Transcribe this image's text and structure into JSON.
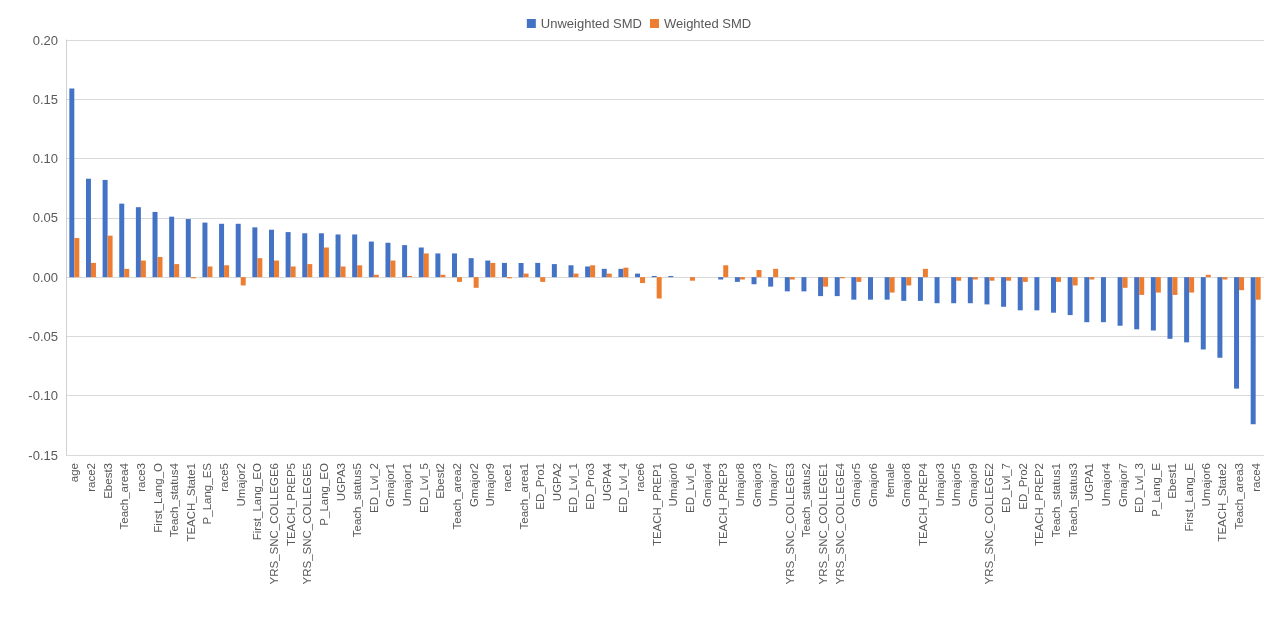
{
  "chart_data": {
    "type": "bar",
    "categories": [
      "age",
      "race2",
      "Ebest3",
      "Teach_area4",
      "race3",
      "First_Lang_O",
      "Teach_status4",
      "TEACH_State1",
      "P_Lang_ES",
      "race5",
      "Umajor2",
      "First_Lang_EO",
      "YRS_SNC_COLLEGE6",
      "TEACH_PREP5",
      "YRS_SNC_COLLEGE5",
      "P_Lang_EO",
      "UGPA3",
      "Teach_status5",
      "ED_Lvl_2",
      "Gmajor1",
      "Umajor1",
      "ED_Lvl_5",
      "Ebest2",
      "Teach_area2",
      "Gmajor2",
      "Umajor9",
      "race1",
      "Teach_area1",
      "ED_Pro1",
      "UGPA2",
      "ED_Lvl_1",
      "ED_Pro3",
      "UGPA4",
      "ED_Lvl_4",
      "race6",
      "TEACH_PREP1",
      "Umajor0",
      "ED_Lvl_6",
      "Gmajor4",
      "TEACH_PREP3",
      "Umajor8",
      "Gmajor3",
      "Umajor7",
      "YRS_SNC_COLLEGE3",
      "Teach_status2",
      "YRS_SNC_COLLEGE1",
      "YRS_SNC_COLLEGE4",
      "Gmajor5",
      "Gmajor6",
      "female",
      "Gmajor8",
      "TEACH_PREP4",
      "Umajor3",
      "Umajor5",
      "Gmajor9",
      "YRS_SNC_COLLEGE2",
      "ED_Lvl_7",
      "ED_Pro2",
      "TEACH_PREP2",
      "Teach_status1",
      "Teach_status3",
      "UGPA1",
      "Umajor4",
      "Gmajor7",
      "ED_Lvl_3",
      "P_Lang_E",
      "Ebest1",
      "First_Lang_E",
      "Umajor6",
      "TEACH_State2",
      "Teach_area3",
      "race4"
    ],
    "series": [
      {
        "name": "Unweighted SMD",
        "color": "#4472c4",
        "values": [
          0.159,
          0.083,
          0.082,
          0.062,
          0.059,
          0.055,
          0.051,
          0.049,
          0.046,
          0.045,
          0.045,
          0.042,
          0.04,
          0.038,
          0.037,
          0.037,
          0.036,
          0.036,
          0.03,
          0.029,
          0.027,
          0.025,
          0.02,
          0.02,
          0.016,
          0.014,
          0.012,
          0.012,
          0.012,
          0.011,
          0.01,
          0.009,
          0.007,
          0.007,
          0.003,
          0.001,
          0.001,
          0.0,
          0.0,
          -0.002,
          -0.004,
          -0.006,
          -0.008,
          -0.012,
          -0.012,
          -0.016,
          -0.016,
          -0.019,
          -0.019,
          -0.019,
          -0.02,
          -0.02,
          -0.022,
          -0.022,
          -0.022,
          -0.023,
          -0.025,
          -0.028,
          -0.028,
          -0.03,
          -0.032,
          -0.038,
          -0.038,
          -0.041,
          -0.044,
          -0.045,
          -0.052,
          -0.055,
          -0.061,
          -0.068,
          -0.094,
          -0.124
        ]
      },
      {
        "name": "Weighted SMD",
        "color": "#ed7d31",
        "values": [
          0.033,
          0.012,
          0.035,
          0.007,
          0.014,
          0.017,
          0.011,
          -0.001,
          0.009,
          0.01,
          -0.007,
          0.016,
          0.014,
          0.009,
          0.011,
          0.025,
          0.009,
          0.01,
          0.002,
          0.014,
          0.001,
          0.02,
          0.002,
          -0.004,
          -0.009,
          0.012,
          -0.001,
          0.003,
          -0.004,
          0.0,
          0.003,
          0.01,
          0.003,
          0.008,
          -0.005,
          -0.018,
          0.0,
          -0.003,
          0.0,
          0.01,
          -0.002,
          0.006,
          0.007,
          -0.002,
          0.0,
          -0.008,
          -0.001,
          -0.004,
          0.0,
          -0.013,
          -0.007,
          0.007,
          0.0,
          -0.003,
          -0.002,
          -0.003,
          -0.003,
          -0.004,
          0.0,
          -0.004,
          -0.007,
          -0.002,
          0.0,
          -0.009,
          -0.015,
          -0.013,
          -0.015,
          -0.013,
          0.002,
          -0.002,
          -0.011,
          -0.019
        ]
      }
    ],
    "ylim": [
      -0.15,
      0.2
    ],
    "yticks": [
      {
        "value": -0.15,
        "label": "-0.15"
      },
      {
        "value": -0.1,
        "label": "-0.10"
      },
      {
        "value": -0.05,
        "label": "-0.05"
      },
      {
        "value": 0,
        "label": "0.00"
      },
      {
        "value": 0.05,
        "label": "0.05"
      },
      {
        "value": 0.1,
        "label": "0.10"
      },
      {
        "value": 0.15,
        "label": "0.15"
      },
      {
        "value": 0.2,
        "label": "0.20"
      }
    ],
    "grid": "y",
    "legend": "top"
  }
}
